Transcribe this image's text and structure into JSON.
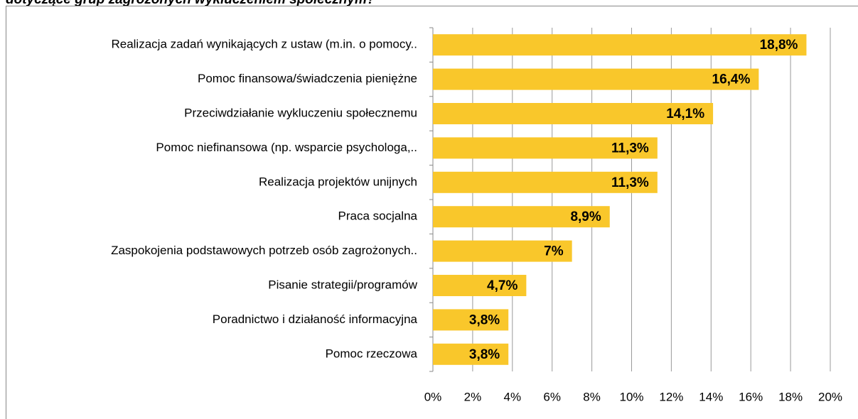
{
  "chart_data": {
    "type": "bar",
    "orientation": "horizontal",
    "title": "dotyczące grup zagrożonych wykluczeniem społecznym?",
    "categories": [
      "Realizacja zadań wynikających z ustaw (m.in. o pomocy..",
      "Pomoc finansowa/świadczenia pieniężne",
      "Przeciwdziałanie wykluczeniu społecznemu",
      "Pomoc niefinansowa (np. wsparcie psychologa,..",
      "Realizacja projektów unijnych",
      "Praca socjalna",
      "Zaspokojenia podstawowych potrzeb osób zagrożonych..",
      "Pisanie strategii/programów",
      "Poradnictwo i działaność informacyjna",
      "Pomoc rzeczowa"
    ],
    "values": [
      18.8,
      16.4,
      14.1,
      11.3,
      11.3,
      8.9,
      7,
      4.7,
      3.8,
      3.8
    ],
    "value_labels": [
      "18,8%",
      "16,4%",
      "14,1%",
      "11,3%",
      "11,3%",
      "8,9%",
      "7%",
      "4,7%",
      "3,8%",
      "3,8%"
    ],
    "color": "#f9c72b",
    "xlim": [
      0,
      20
    ],
    "xticks": [
      {
        "value": 0,
        "label": "0%"
      },
      {
        "value": 2,
        "label": "2%"
      },
      {
        "value": 4,
        "label": "4%"
      },
      {
        "value": 6,
        "label": "6%"
      },
      {
        "value": 8,
        "label": "8%"
      },
      {
        "value": 10,
        "label": "10%"
      },
      {
        "value": 12,
        "label": "12%"
      },
      {
        "value": 14,
        "label": "14%"
      },
      {
        "value": 16,
        "label": "16%"
      },
      {
        "value": 18,
        "label": "18%"
      },
      {
        "value": 20,
        "label": "20%"
      }
    ],
    "grid": true
  }
}
